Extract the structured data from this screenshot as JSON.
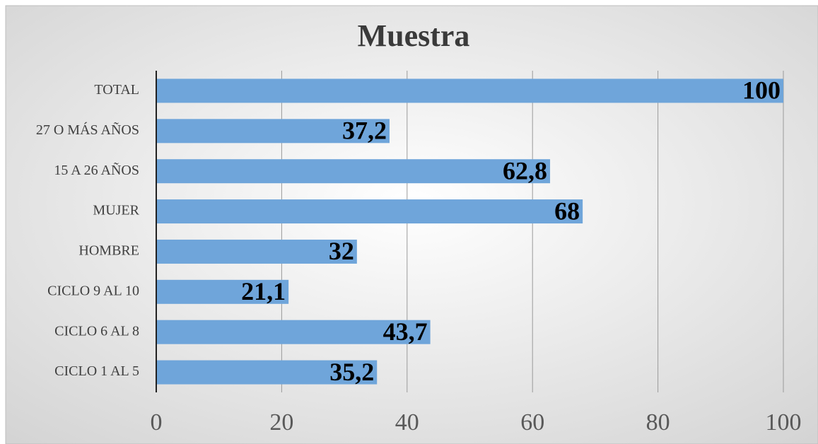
{
  "chart_data": {
    "type": "bar",
    "orientation": "horizontal",
    "title": "Muestra",
    "categories": [
      "TOTAL",
      "27 O MÁS AÑOS",
      "15 A 26 AÑOS",
      "MUJER",
      "HOMBRE",
      "CICLO 9 AL 10",
      "CICLO 6 AL 8",
      "CICLO 1 AL 5"
    ],
    "values": [
      100,
      37.2,
      62.8,
      68,
      32,
      21.1,
      43.7,
      35.2
    ],
    "value_labels": [
      "100",
      "37,2",
      "62,8",
      "68",
      "32",
      "21,1",
      "43,7",
      "35,2"
    ],
    "color": "#6fa5da",
    "xlim": [
      0,
      100
    ],
    "xticks": [
      0,
      20,
      40,
      60,
      80,
      100
    ],
    "grid": true
  }
}
